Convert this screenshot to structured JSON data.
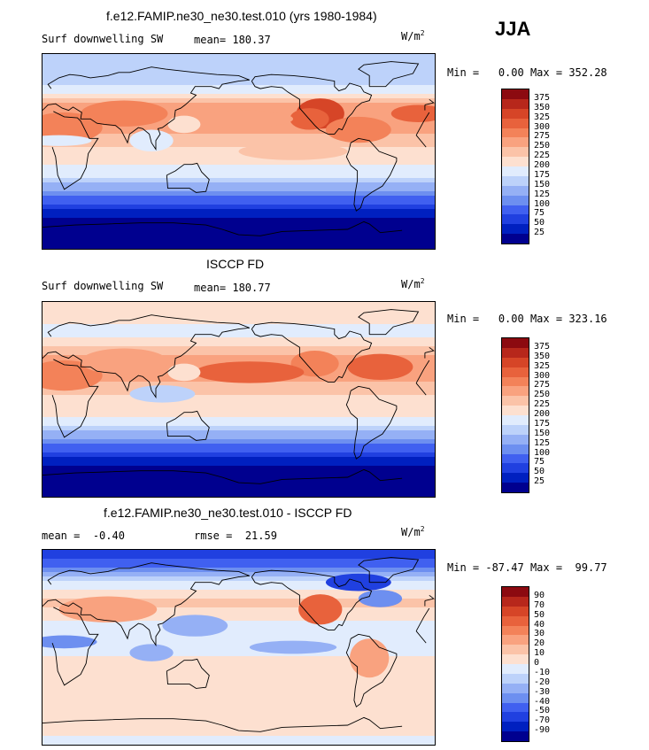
{
  "season": "JJA",
  "colors": {
    "abs_scale": [
      "#00008f",
      "#0020c0",
      "#2040e0",
      "#4060f0",
      "#6d8ff0",
      "#95b0f5",
      "#bdd2fa",
      "#e1ecfd",
      "#fde0d0",
      "#fbc3a8",
      "#f9a27f",
      "#f38259",
      "#e8623c",
      "#d64527",
      "#b7271b",
      "#8c0a10"
    ],
    "diff_scale": [
      "#00008f",
      "#0020c0",
      "#2040e0",
      "#4060f0",
      "#6d8ff0",
      "#95b0f5",
      "#bdd2fa",
      "#e1ecfd",
      "#fde0d0",
      "#fbc3a8",
      "#f9a27f",
      "#f38259",
      "#e8623c",
      "#d64527",
      "#b7271b",
      "#8c0a10"
    ]
  },
  "chart_data": [
    {
      "type": "heatmap",
      "id": "model",
      "title": "f.e12.FAMIP.ne30_ne30.test.010 (yrs 1980-1984)",
      "left_label": "Surf downwelling SW",
      "stat_label": "mean=",
      "stat_value": "180.37",
      "units": "W/m",
      "units_exp": "2",
      "min_label": "Min =",
      "min_value": "0.00",
      "max_label": "Max =",
      "max_value": "352.28",
      "colorbar_ticks": [
        "375",
        "350",
        "325",
        "300",
        "275",
        "250",
        "225",
        "200",
        "175",
        "150",
        "125",
        "100",
        "75",
        "50",
        "25"
      ],
      "lat_band_values": [
        {
          "lat": 80,
          "value": 160
        },
        {
          "lat": 60,
          "value": 175
        },
        {
          "lat": 40,
          "value": 265
        },
        {
          "lat": 20,
          "value": 255
        },
        {
          "lat": 0,
          "value": 215
        },
        {
          "lat": -20,
          "value": 190
        },
        {
          "lat": -40,
          "value": 110
        },
        {
          "lat": -60,
          "value": 30
        },
        {
          "lat": -80,
          "value": 0
        }
      ]
    },
    {
      "type": "heatmap",
      "id": "obs",
      "title": "ISCCP FD",
      "left_label": "Surf downwelling SW",
      "stat_label": "mean=",
      "stat_value": "180.77",
      "units": "W/m",
      "units_exp": "2",
      "min_label": "Min =",
      "min_value": "0.00",
      "max_label": "Max =",
      "max_value": "323.16",
      "colorbar_ticks": [
        "375",
        "350",
        "325",
        "300",
        "275",
        "250",
        "225",
        "200",
        "175",
        "150",
        "125",
        "100",
        "75",
        "50",
        "25"
      ],
      "lat_band_values": [
        {
          "lat": 80,
          "value": 205
        },
        {
          "lat": 60,
          "value": 195
        },
        {
          "lat": 40,
          "value": 255
        },
        {
          "lat": 20,
          "value": 260
        },
        {
          "lat": 0,
          "value": 215
        },
        {
          "lat": -20,
          "value": 195
        },
        {
          "lat": -40,
          "value": 105
        },
        {
          "lat": -60,
          "value": 25
        },
        {
          "lat": -80,
          "value": 0
        }
      ]
    },
    {
      "type": "heatmap",
      "id": "diff",
      "title": "f.e12.FAMIP.ne30_ne30.test.010 - ISCCP FD",
      "stat_label": "mean =",
      "stat_value": "-0.40",
      "stat2_label": "rmse =",
      "stat2_value": "21.59",
      "units": "W/m",
      "units_exp": "2",
      "min_label": "Min =",
      "min_value": "-87.47",
      "max_label": "Max =",
      "max_value": "99.77",
      "colorbar_ticks": [
        "90",
        "70",
        "50",
        "40",
        "30",
        "20",
        "10",
        "0",
        "-10",
        "-20",
        "-30",
        "-40",
        "-50",
        "-70",
        "-90"
      ],
      "lat_band_values": [
        {
          "lat": 80,
          "value": -50
        },
        {
          "lat": 60,
          "value": -10
        },
        {
          "lat": 40,
          "value": 15
        },
        {
          "lat": 20,
          "value": -5
        },
        {
          "lat": 0,
          "value": -5
        },
        {
          "lat": -20,
          "value": 5
        },
        {
          "lat": -40,
          "value": 5
        },
        {
          "lat": -60,
          "value": 5
        },
        {
          "lat": -80,
          "value": 0
        }
      ]
    }
  ]
}
